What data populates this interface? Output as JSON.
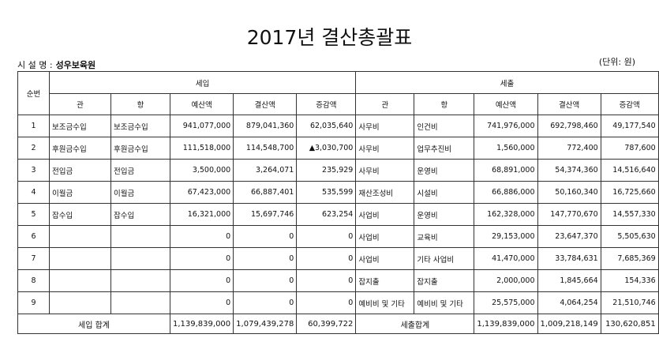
{
  "header": {
    "title": "2017년 결산총괄표",
    "facility_label": "시 설 명 :",
    "facility": "성우보육원",
    "unit": "(단위: 원)"
  },
  "table": {
    "columns": {
      "no": "순번",
      "income": "세입",
      "expense": "세출",
      "income_sub": [
        "관",
        "항",
        "예산액",
        "결산액",
        "증감액"
      ],
      "expense_sub": [
        "관",
        "항",
        "예산액",
        "결산액",
        "증감액"
      ]
    },
    "rows": [
      {
        "no": "1",
        "income": {
          "gwan": "보조금수입",
          "hang": "보조금수입",
          "budget": "941,077,000",
          "settle": "879,041,360",
          "diff": "62,035,640"
        },
        "expense": {
          "gwan": "사무비",
          "hang": "인건비",
          "budget": "741,976,000",
          "settle": "692,798,460",
          "diff": "49,177,540"
        }
      },
      {
        "no": "2",
        "income": {
          "gwan": "후원금수입",
          "hang": "후원금수입",
          "budget": "111,518,000",
          "settle": "114,548,700",
          "diff": "▲3,030,700"
        },
        "expense": {
          "gwan": "사무비",
          "hang": "업무추진비",
          "budget": "1,560,000",
          "settle": "772,400",
          "diff": "787,600"
        }
      },
      {
        "no": "3",
        "income": {
          "gwan": "전입금",
          "hang": "전입금",
          "budget": "3,500,000",
          "settle": "3,264,071",
          "diff": "235,929"
        },
        "expense": {
          "gwan": "사무비",
          "hang": "운영비",
          "budget": "68,891,000",
          "settle": "54,374,360",
          "diff": "14,516,640"
        }
      },
      {
        "no": "4",
        "income": {
          "gwan": "이월금",
          "hang": "이월금",
          "budget": "67,423,000",
          "settle": "66,887,401",
          "diff": "535,599"
        },
        "expense": {
          "gwan": "재산조성비",
          "hang": "시설비",
          "budget": "66,886,000",
          "settle": "50,160,340",
          "diff": "16,725,660"
        }
      },
      {
        "no": "5",
        "income": {
          "gwan": "잡수입",
          "hang": "잡수입",
          "budget": "16,321,000",
          "settle": "15,697,746",
          "diff": "623,254"
        },
        "expense": {
          "gwan": "사업비",
          "hang": "운영비",
          "budget": "162,328,000",
          "settle": "147,770,670",
          "diff": "14,557,330"
        }
      },
      {
        "no": "6",
        "income": {
          "budget": "0",
          "settle": "0",
          "diff": "0"
        },
        "expense": {
          "gwan": "사업비",
          "hang": "교육비",
          "budget": "29,153,000",
          "settle": "23,647,370",
          "diff": "5,505,630"
        }
      },
      {
        "no": "7",
        "income": {
          "budget": "0",
          "settle": "0",
          "diff": "0"
        },
        "expense": {
          "gwan": "사업비",
          "hang": "기타 사업비",
          "budget": "41,470,000",
          "settle": "33,784,631",
          "diff": "7,685,369"
        }
      },
      {
        "no": "8",
        "income": {
          "budget": "0",
          "settle": "0",
          "diff": "0"
        },
        "expense": {
          "gwan": "잡지출",
          "hang": "잡지출",
          "budget": "2,000,000",
          "settle": "1,845,664",
          "diff": "154,336"
        }
      },
      {
        "no": "9",
        "income": {
          "budget": "0",
          "settle": "0",
          "diff": "0"
        },
        "expense": {
          "gwan": "예비비 및 기타",
          "hang": "예비비 및 기타",
          "budget": "25,575,000",
          "settle": "4,064,254",
          "diff": "21,510,746"
        }
      }
    ],
    "total": {
      "income_label": "세입 합계",
      "income": {
        "budget": "1,139,839,000",
        "settle": "1,079,439,278",
        "diff": "60,399,722"
      },
      "expense_label": "세출합계",
      "expense": {
        "budget": "1,139,839,000",
        "settle": "1,009,218,149",
        "diff": "130,620,851"
      }
    }
  }
}
